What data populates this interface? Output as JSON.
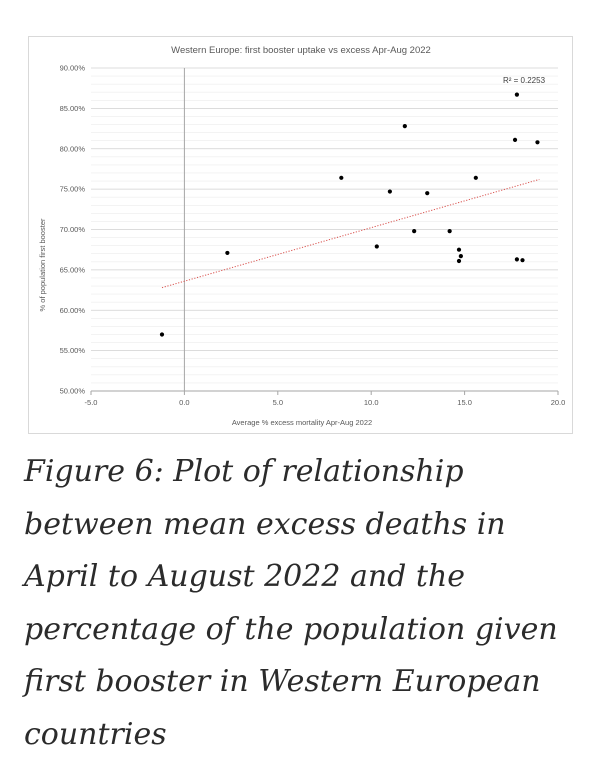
{
  "chart_data": {
    "type": "scatter",
    "title": "Western Europe: first booster uptake vs excess Apr-Aug 2022",
    "xlabel": "Average % excess mortality Apr-Aug 2022",
    "ylabel": "% of population first booster",
    "xlim": [
      -5,
      20
    ],
    "ylim": [
      50,
      90
    ],
    "x_ticks": [
      "-5.0",
      "0.0",
      "5.0",
      "10.0",
      "15.0",
      "20.0"
    ],
    "x_tick_values": [
      -5,
      0,
      5,
      10,
      15,
      20
    ],
    "y_ticks": [
      "50.00%",
      "55.00%",
      "60.00%",
      "65.00%",
      "70.00%",
      "75.00%",
      "80.00%",
      "85.00%",
      "90.00%"
    ],
    "y_tick_values": [
      50,
      55,
      60,
      65,
      70,
      75,
      80,
      85,
      90
    ],
    "grid": true,
    "point_color": "#000000",
    "trendline": {
      "color": "#d9534f",
      "style": "dotted",
      "x": [
        -1.2,
        19.0
      ],
      "y": [
        62.8,
        76.2
      ],
      "r_squared_label": "R² = 0.2253"
    },
    "points": [
      {
        "x": -1.2,
        "y": 57.0
      },
      {
        "x": 2.3,
        "y": 67.1
      },
      {
        "x": 8.4,
        "y": 76.4
      },
      {
        "x": 10.3,
        "y": 67.9
      },
      {
        "x": 11.0,
        "y": 74.7
      },
      {
        "x": 11.8,
        "y": 82.8
      },
      {
        "x": 12.3,
        "y": 69.8
      },
      {
        "x": 13.0,
        "y": 74.5
      },
      {
        "x": 14.2,
        "y": 69.8
      },
      {
        "x": 14.7,
        "y": 67.5
      },
      {
        "x": 14.8,
        "y": 66.7
      },
      {
        "x": 14.7,
        "y": 66.1
      },
      {
        "x": 15.6,
        "y": 76.4
      },
      {
        "x": 17.7,
        "y": 81.1
      },
      {
        "x": 17.8,
        "y": 86.7
      },
      {
        "x": 17.8,
        "y": 66.3
      },
      {
        "x": 18.1,
        "y": 66.2
      },
      {
        "x": 18.9,
        "y": 80.8
      }
    ]
  },
  "caption": "Figure 6: Plot of relationship between mean excess deaths in April to August 2022 and the percentage of the population given first booster in Western European countries"
}
